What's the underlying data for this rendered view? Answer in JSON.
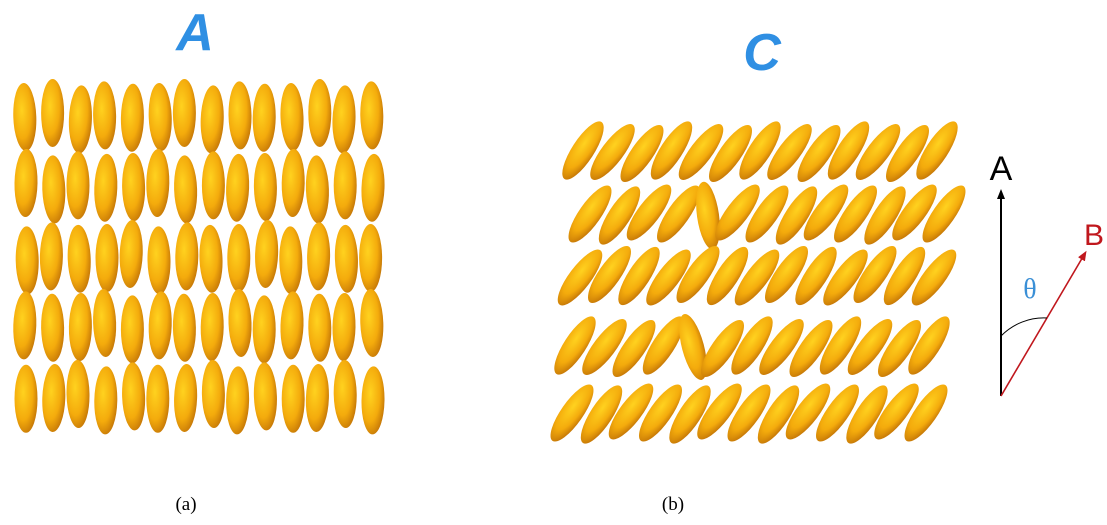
{
  "panel_a": {
    "phase_label": "A",
    "caption": "(a)",
    "rows": 5,
    "molecules_per_row": 14,
    "tilt_deg": 0
  },
  "panel_b": {
    "phase_label": "C",
    "caption": "(b)",
    "rows": 5,
    "molecules_per_row": 13,
    "tilt_deg": 35,
    "defects": [
      {
        "row": 1,
        "index": 4,
        "tilt_deg": -8
      },
      {
        "row": 3,
        "index": 4,
        "tilt_deg": -15
      }
    ]
  },
  "vector_diagram": {
    "vector_a_label": "A",
    "vector_b_label": "B",
    "angle_label": "θ",
    "vector_a_color": "#000000",
    "vector_b_color": "#c0171d",
    "angle_color": "#3a8fd6"
  },
  "colors": {
    "phase_label": "#2f8fe3",
    "molecule_light": "#ffcf1a",
    "molecule_mid": "#f2a80d",
    "molecule_dark": "#b86a05"
  }
}
